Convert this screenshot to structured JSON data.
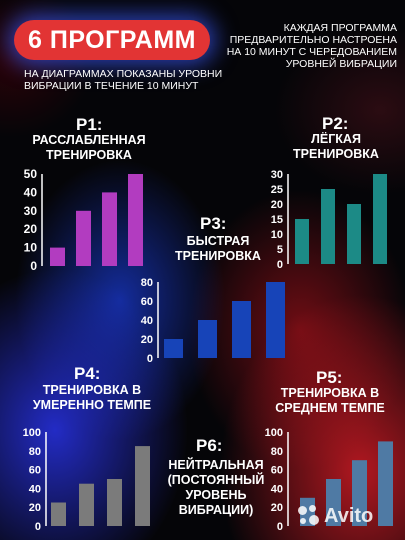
{
  "header": {
    "title": "6 ПРОГРАММ",
    "left_caption": "НА ДИАГРАММАХ ПОКАЗАНЫ УРОВНИ ВИБРАЦИИ В ТЕЧЕНИЕ 10 МИНУТ",
    "right_caption": "КАЖДАЯ ПРОГРАММА ПРЕДВАРИТЕЛЬНО НАСТРОЕНА НА 10 МИНУТ С ЧЕРЕДОВАНИЕМ УРОВНЕЙ ВИБРАЦИИ",
    "accent_color": "#e23434"
  },
  "programs": [
    {
      "code": "P1:",
      "name": "РАССЛАБЛЕННАЯ ТРЕНИРОВКА"
    },
    {
      "code": "P2:",
      "name": "ЛЁГКАЯ ТРЕНИРОВКА"
    },
    {
      "code": "P3:",
      "name": "БЫСТРАЯ ТРЕНИРОВКА"
    },
    {
      "code": "P4:",
      "name": "ТРЕНИРОВКА В УМЕРЕННО ТЕМПЕ"
    },
    {
      "code": "P5:",
      "name": "ТРЕНИРОВКА В СРЕДНЕМ ТЕМПЕ"
    },
    {
      "code": "P6:",
      "name": "НЕЙТРАЛЬНАЯ (ПОСТОЯННЫЙ УРОВЕНЬ ВИБРАЦИИ)"
    }
  ],
  "watermark": {
    "text": "Avito",
    "icon": "avito-dots-icon"
  },
  "chart_data": [
    {
      "program": "P1",
      "type": "bar",
      "values": [
        10,
        30,
        40,
        50
      ],
      "ylim": [
        0,
        50
      ],
      "yticks": [
        0,
        10,
        20,
        30,
        40,
        50
      ],
      "color": "#b23cc0"
    },
    {
      "program": "P2",
      "type": "bar",
      "values": [
        15,
        25,
        20,
        30
      ],
      "ylim": [
        0,
        30
      ],
      "yticks": [
        0,
        5,
        10,
        15,
        20,
        25,
        30
      ],
      "color": "#1c8a86"
    },
    {
      "program": "P3",
      "type": "bar",
      "values": [
        20,
        40,
        60,
        80
      ],
      "ylim": [
        0,
        80
      ],
      "yticks": [
        0,
        20,
        40,
        60,
        80
      ],
      "color": "#1744b8"
    },
    {
      "program": "P4",
      "type": "bar",
      "values": [
        25,
        45,
        50,
        85
      ],
      "ylim": [
        0,
        100
      ],
      "yticks": [
        0,
        20,
        40,
        60,
        80,
        100
      ],
      "color": "#7b7b7b"
    },
    {
      "program": "P5",
      "type": "bar",
      "values": [
        30,
        50,
        70,
        90
      ],
      "ylim": [
        0,
        100
      ],
      "yticks": [
        0,
        20,
        40,
        60,
        80,
        100
      ],
      "color": "#4f7aa4"
    }
  ]
}
